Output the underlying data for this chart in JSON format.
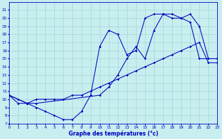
{
  "title": "Graphe des températures (°c)",
  "background_color": "#c8eef0",
  "line_color": "#0000bb",
  "grid_color": "#a0d8d8",
  "ylim": [
    7,
    22
  ],
  "xlim": [
    0,
    23
  ],
  "yticks": [
    7,
    8,
    9,
    10,
    11,
    12,
    13,
    14,
    15,
    16,
    17,
    18,
    19,
    20,
    21
  ],
  "xticks": [
    0,
    1,
    2,
    3,
    4,
    5,
    6,
    7,
    8,
    9,
    10,
    11,
    12,
    13,
    14,
    15,
    16,
    17,
    18,
    19,
    20,
    21,
    22,
    23
  ],
  "line1_x": [
    0,
    1,
    2,
    3,
    4,
    5,
    6,
    7,
    8,
    9,
    10,
    11,
    12,
    13,
    14,
    15,
    16,
    17,
    18,
    19,
    20,
    21,
    22,
    23
  ],
  "line1_y": [
    10.5,
    10.0,
    9.5,
    10.0,
    10.0,
    10.0,
    10.0,
    10.5,
    10.5,
    11.0,
    11.5,
    12.0,
    12.5,
    13.0,
    13.5,
    14.0,
    14.5,
    15.0,
    15.5,
    16.0,
    16.5,
    17.0,
    14.5,
    14.5
  ],
  "line2_x": [
    0,
    1,
    2,
    3,
    4,
    5,
    6,
    7,
    8,
    9,
    10,
    11,
    12,
    13,
    14,
    15,
    16,
    17,
    18,
    19,
    20,
    21,
    22,
    23
  ],
  "line2_y": [
    10.5,
    9.5,
    9.5,
    9.0,
    8.5,
    8.0,
    7.5,
    7.5,
    8.5,
    10.5,
    16.5,
    18.5,
    18.0,
    15.5,
    16.0,
    20.0,
    20.5,
    20.5,
    20.0,
    20.0,
    19.5,
    15.0,
    15.0,
    15.0
  ],
  "line3_x": [
    0,
    2,
    3,
    10,
    11,
    12,
    13,
    14,
    15,
    16,
    17,
    18,
    19,
    20,
    21,
    22,
    23
  ],
  "line3_y": [
    10.5,
    9.5,
    9.5,
    10.5,
    11.5,
    13.0,
    15.0,
    16.5,
    15.0,
    18.5,
    20.5,
    20.5,
    20.0,
    20.5,
    19.0,
    15.0,
    15.0
  ]
}
